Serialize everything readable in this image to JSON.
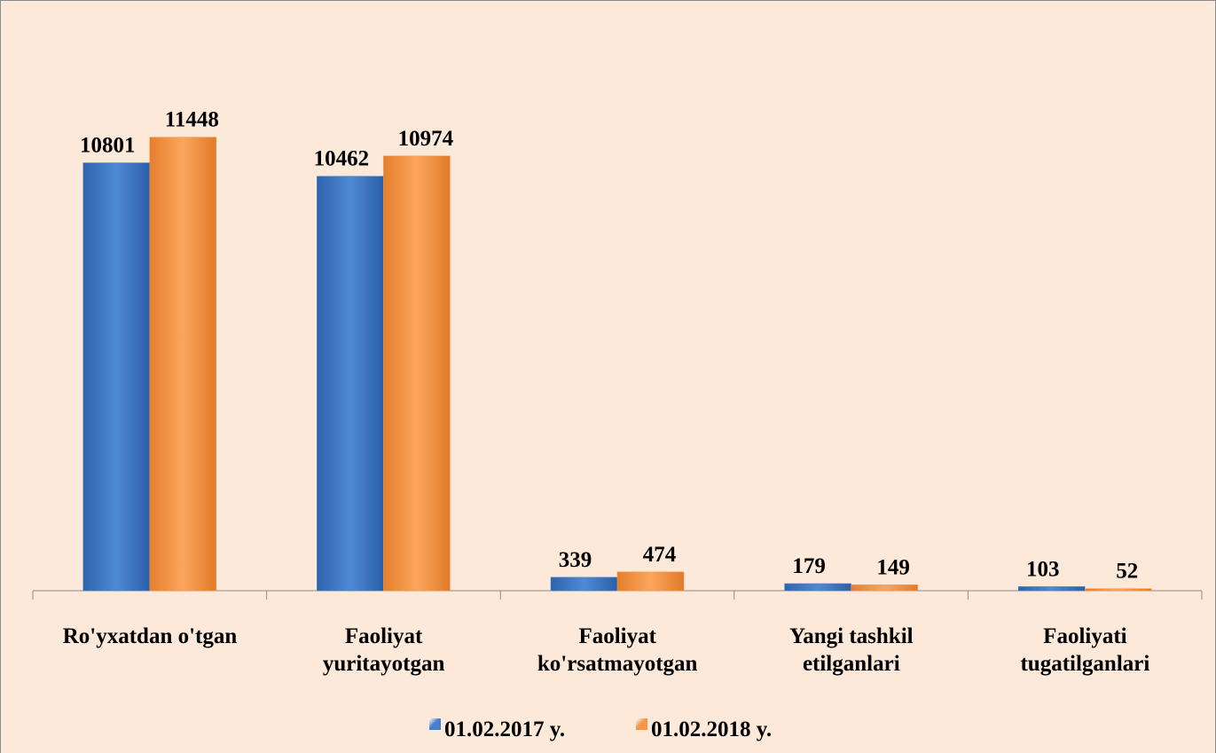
{
  "chart_data": {
    "type": "bar",
    "categories": [
      "Ro'yxatdan o'tgan",
      "Faoliyat\nyuritayotgan",
      "Faoliyat\nko'rsatmayotgan",
      "Yangi tashkil\netilganlari",
      "Faoliyati\ntugatilganlari"
    ],
    "series": [
      {
        "name": "01.02.2017 y.",
        "color": "#4a7fc8",
        "values": [
          10801,
          10462,
          339,
          179,
          103
        ]
      },
      {
        "name": "01.02.2018 y.",
        "color": "#f79646",
        "values": [
          11448,
          10974,
          474,
          149,
          52
        ]
      }
    ],
    "ylim": [
      0,
      12000
    ],
    "legend": "bottom"
  }
}
